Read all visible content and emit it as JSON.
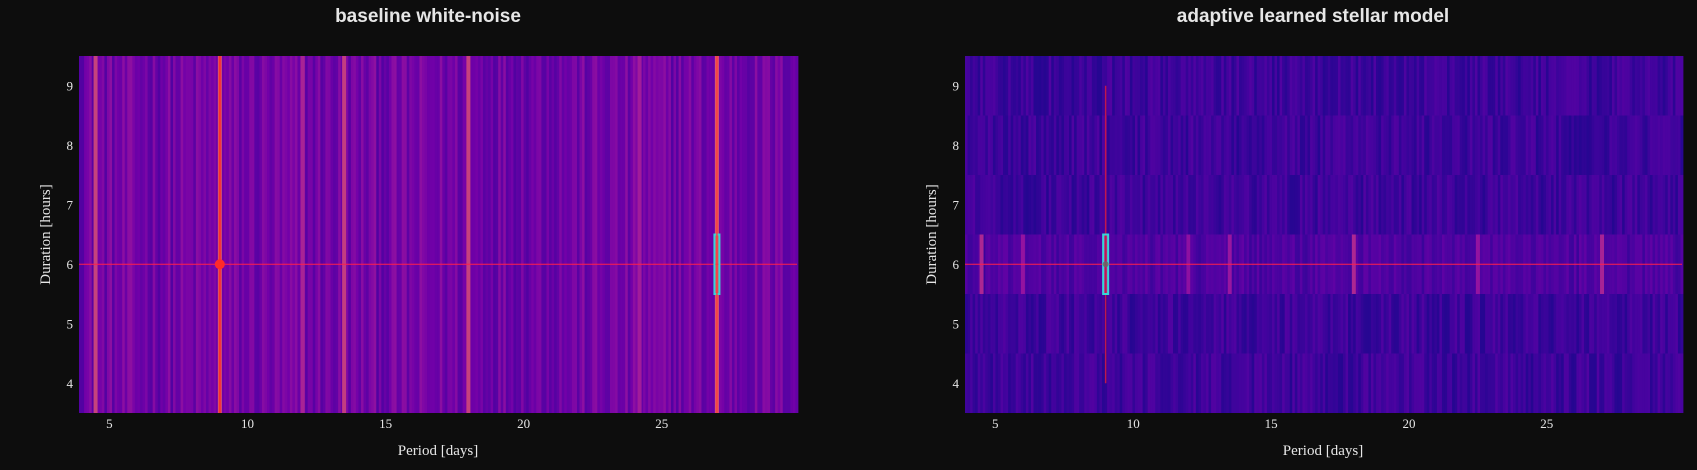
{
  "chart_data": [
    {
      "type": "heatmap",
      "title": "baseline white-noise",
      "xlabel": "Period [days]",
      "ylabel": "Duration [hours]",
      "xlim": [
        3.9,
        29.9
      ],
      "ylim": [
        3.5,
        9.5
      ],
      "x_ticks": [
        "5",
        "10",
        "15",
        "20",
        "25"
      ],
      "y_ticks": [
        "4",
        "5",
        "6",
        "7",
        "8",
        "9"
      ],
      "durations": [
        4,
        5,
        6,
        7,
        8,
        9
      ],
      "colorscale": [
        "#0d0887",
        "#46039f",
        "#7201a8",
        "#9c179e",
        "#bd3786",
        "#d8576b",
        "#ed7953",
        "#fb9f3a"
      ],
      "columns_vary_by_duration": false,
      "peaks": [
        {
          "period": 4.5,
          "level": 0.62
        },
        {
          "period": 9.0,
          "level": 0.72
        },
        {
          "period": 12.0,
          "level": 0.48
        },
        {
          "period": 13.5,
          "level": 0.6
        },
        {
          "period": 18.0,
          "level": 0.62
        },
        {
          "period": 24.2,
          "level": 0.45
        },
        {
          "period": 27.0,
          "level": 0.72
        }
      ],
      "injected_signal": {
        "period": 9.0,
        "duration": 6,
        "color": "#ff2a2a"
      },
      "crosshair": {
        "period": 9.0,
        "duration": 6,
        "color": "#ff1f4b"
      },
      "best_box": {
        "period": 27.0,
        "duration": 6,
        "color": "#36d6d6"
      }
    },
    {
      "type": "heatmap",
      "title": "adaptive learned stellar model",
      "xlabel": "Period [days]",
      "ylabel": "Duration [hours]",
      "xlim": [
        3.9,
        29.9
      ],
      "ylim": [
        3.5,
        9.5
      ],
      "x_ticks": [
        "5",
        "10",
        "15",
        "20",
        "25"
      ],
      "y_ticks": [
        "4",
        "5",
        "6",
        "7",
        "8",
        "9"
      ],
      "durations": [
        4,
        5,
        6,
        7,
        8,
        9
      ],
      "colorscale": [
        "#0d0887",
        "#46039f",
        "#7201a8",
        "#9c179e",
        "#bd3786",
        "#d8576b",
        "#ed7953",
        "#fb9f3a"
      ],
      "columns_vary_by_duration": true,
      "peaks": [
        {
          "period": 4.5,
          "level": 0.5
        },
        {
          "period": 6.0,
          "level": 0.4
        },
        {
          "period": 9.0,
          "level": 0.55
        },
        {
          "period": 12.0,
          "level": 0.38
        },
        {
          "period": 13.5,
          "level": 0.42
        },
        {
          "period": 18.0,
          "level": 0.5
        },
        {
          "period": 22.5,
          "level": 0.4
        },
        {
          "period": 27.0,
          "level": 0.48
        }
      ],
      "injected_signal": {
        "period": 9.0,
        "duration_range": [
          4,
          9
        ],
        "color": "#c0164e"
      },
      "crosshair": {
        "period": 9.0,
        "duration": 6,
        "color": "#ff1f4b"
      },
      "best_box": {
        "period": 9.0,
        "duration": 6,
        "color": "#36d6d6"
      }
    }
  ]
}
